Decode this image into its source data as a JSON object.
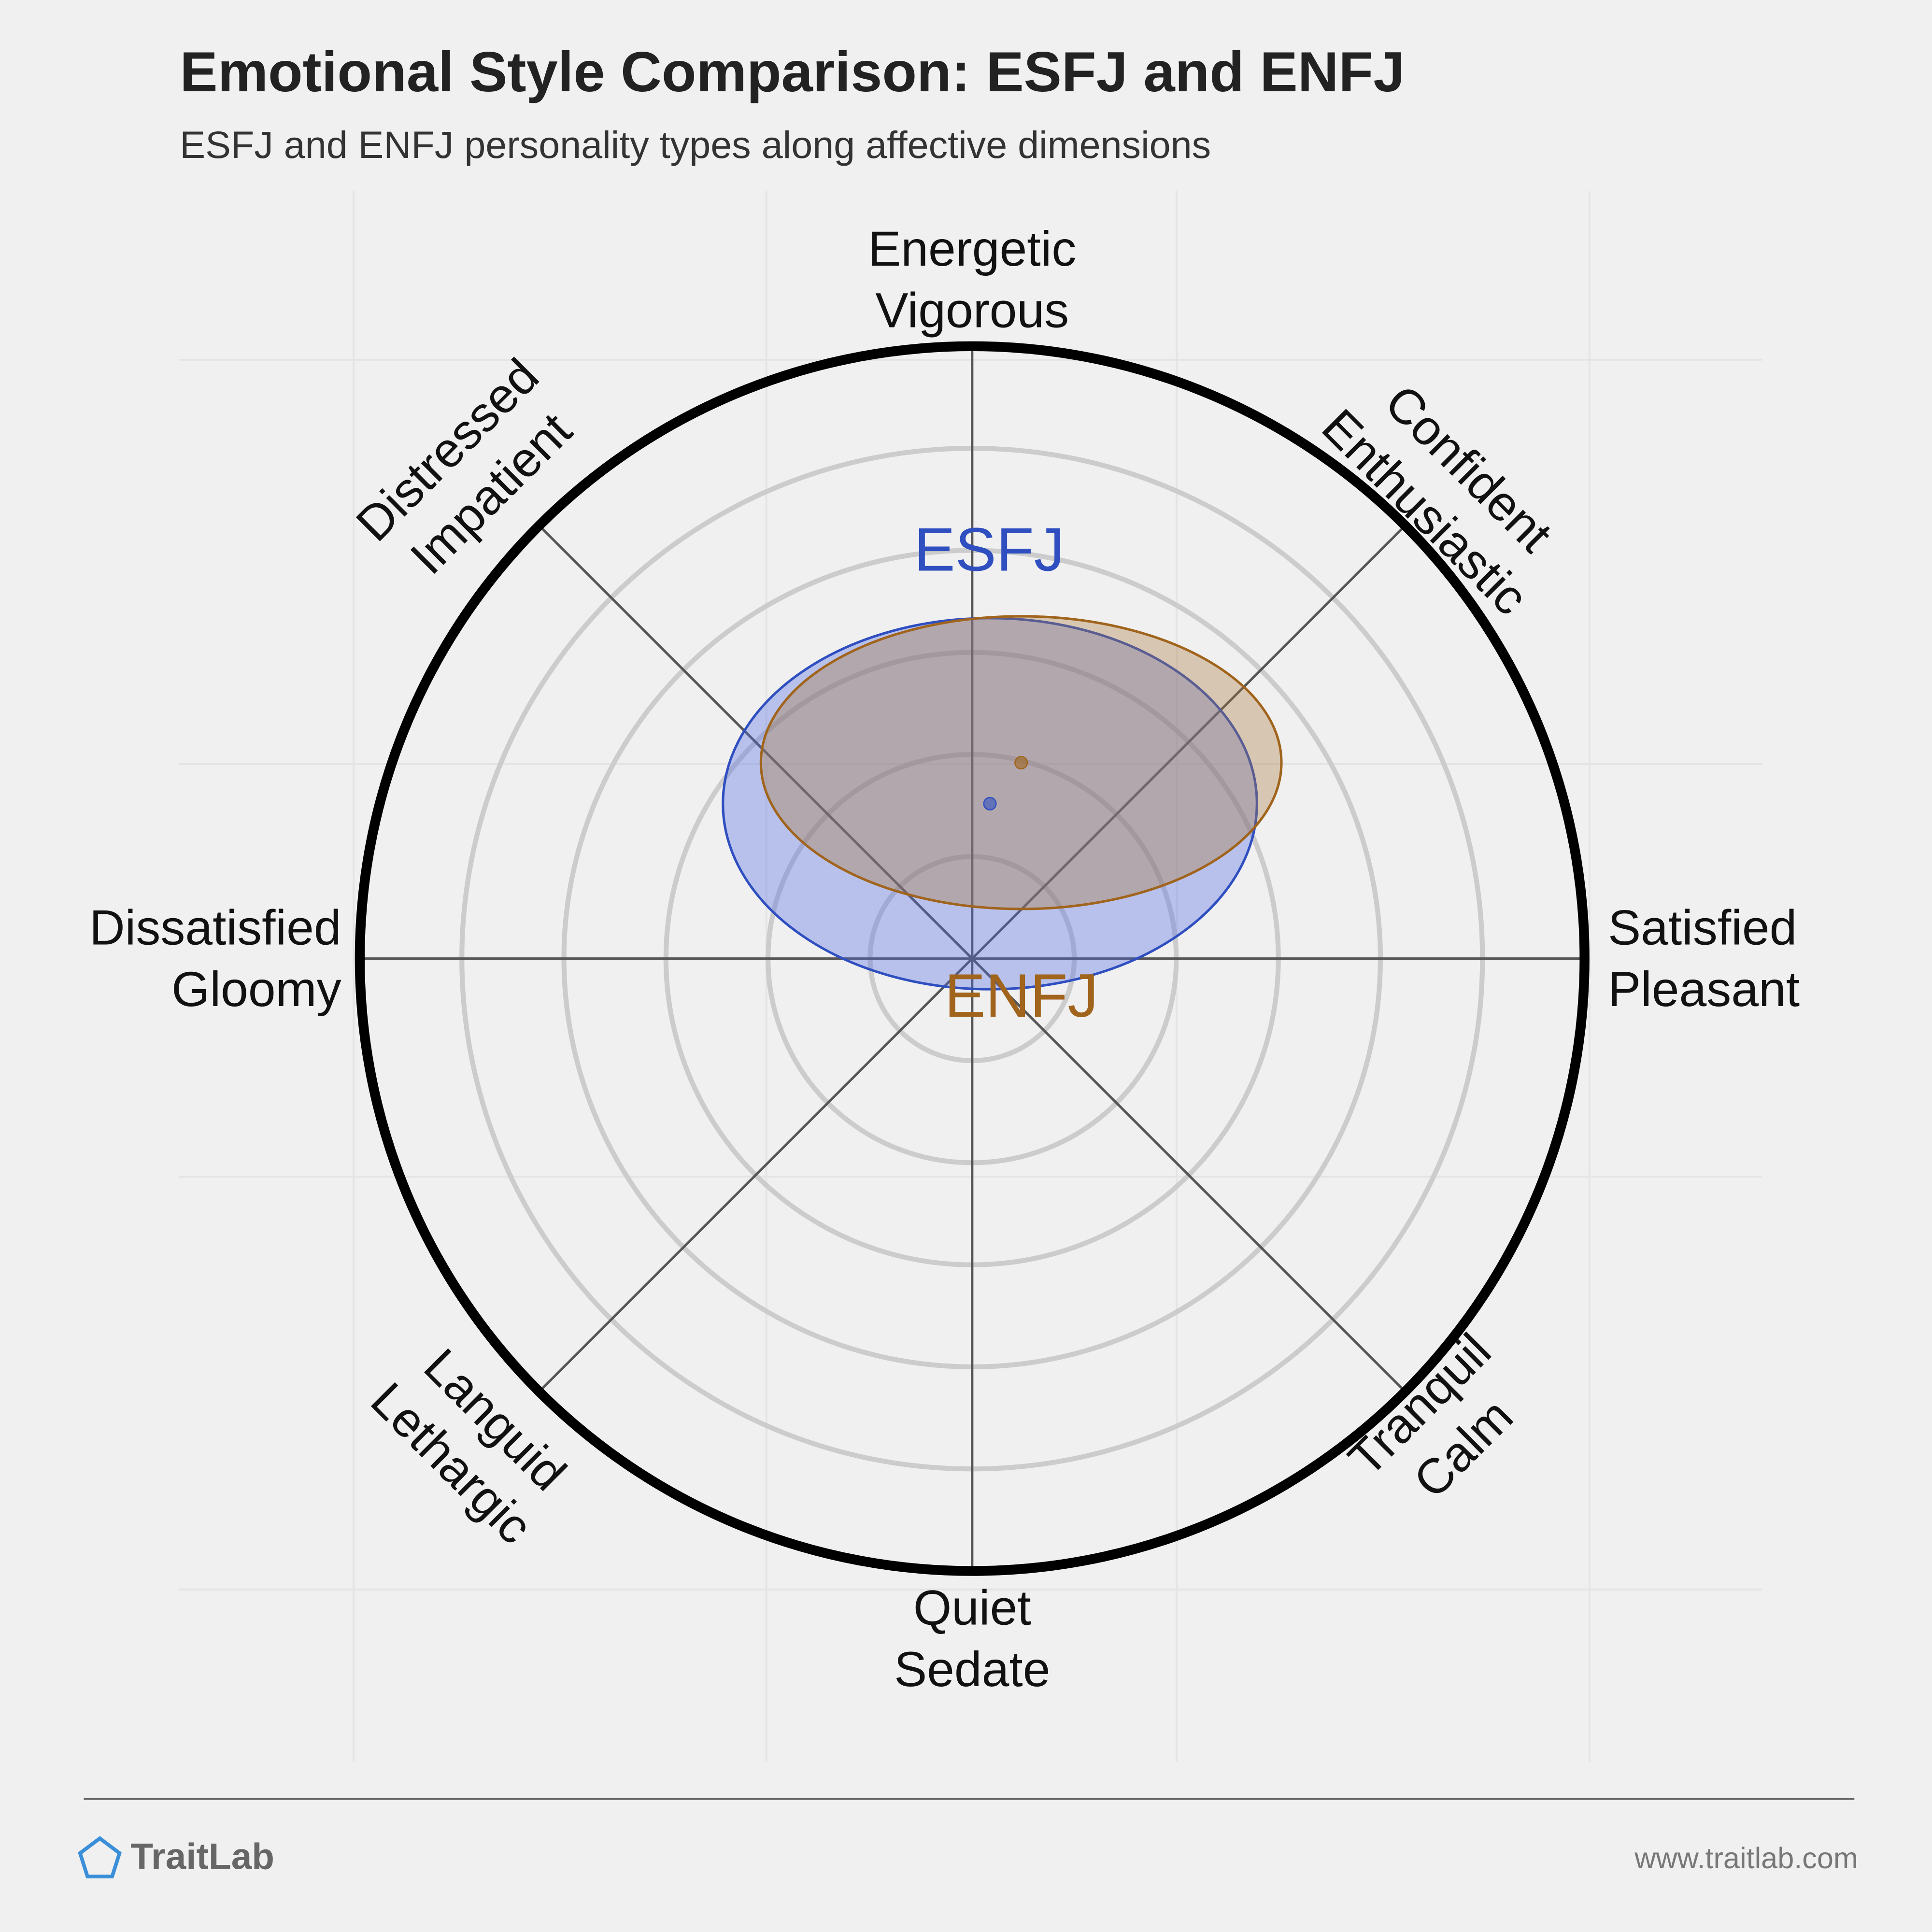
{
  "chart_data": {
    "type": "circumplex",
    "title": "Emotional Style Comparison: ESFJ and ENFJ",
    "subtitle": "ESFJ and ENFJ personality types along affective dimensions",
    "rlim": [
      0,
      1
    ],
    "axes": [
      [
        "Energetic",
        "Vigorous"
      ],
      [
        "Confident",
        "Enthusiastic"
      ],
      [
        "Satisfied",
        "Pleasant"
      ],
      [
        "Tranquil",
        "Calm"
      ],
      [
        "Quiet",
        "Sedate"
      ],
      [
        "Languid",
        "Lethargic"
      ],
      [
        "Dissatisfied",
        "Gloomy"
      ],
      [
        "Distressed",
        "Impatient"
      ]
    ],
    "series": [
      {
        "name": "ESFJ",
        "color": "#2f4fc0",
        "x": 0.029,
        "y": 0.253,
        "rx": 0.436,
        "ry": 0.303
      },
      {
        "name": "ENFJ",
        "color": "#a0641c",
        "x": 0.08,
        "y": 0.32,
        "rx": 0.425,
        "ry": 0.239
      }
    ]
  },
  "footer": {
    "brand": "TraitLab",
    "url": "www.traitlab.com"
  }
}
